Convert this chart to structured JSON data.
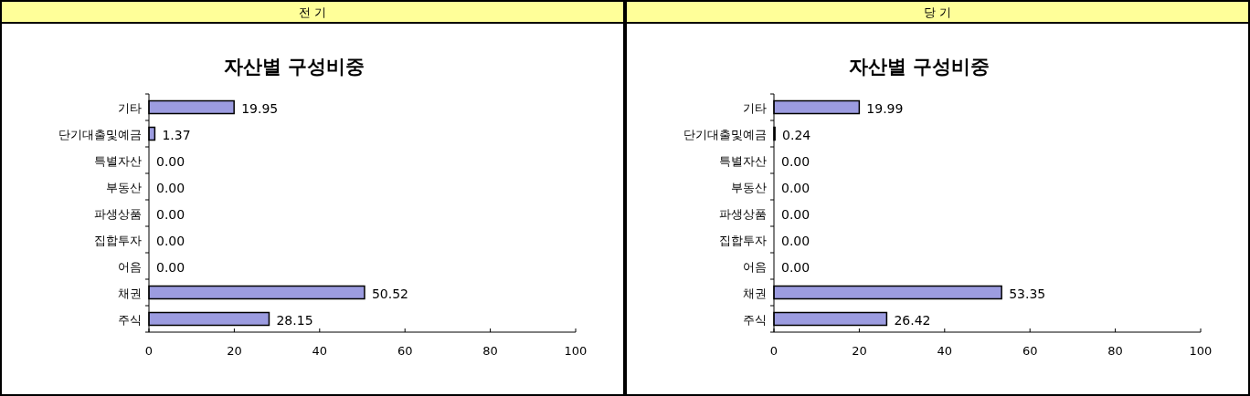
{
  "chart_data": [
    {
      "type": "bar",
      "orientation": "horizontal",
      "title": "전 기",
      "subtitle": "자산별 구성비중",
      "categories": [
        "기타",
        "단기대출및예금",
        "특별자산",
        "부동산",
        "파생상품",
        "집합투자",
        "어음",
        "채권",
        "주식"
      ],
      "values": [
        19.95,
        1.37,
        0,
        0,
        0,
        0,
        0,
        50.52,
        28.15
      ],
      "value_labels": [
        "19.95",
        "1.37",
        "0.00",
        "0.00",
        "0.00",
        "0.00",
        "0.00",
        "50.52",
        "28.15"
      ],
      "color": "#9c9ce0",
      "xlim": [
        0,
        100
      ],
      "xticks": [
        0,
        20,
        40,
        60,
        80,
        100
      ],
      "grid": false
    },
    {
      "type": "bar",
      "orientation": "horizontal",
      "title": "당 기",
      "subtitle": "자산별 구성비중",
      "categories": [
        "기타",
        "단기대출및예금",
        "특별자산",
        "부동산",
        "파생상품",
        "집합투자",
        "어음",
        "채권",
        "주식"
      ],
      "values": [
        19.99,
        0.24,
        0,
        0,
        0,
        0,
        0,
        53.35,
        26.42
      ],
      "value_labels": [
        "19.99",
        "0.24",
        "0.00",
        "0.00",
        "0.00",
        "0.00",
        "0.00",
        "53.35",
        "26.42"
      ],
      "color": "#9c9ce0",
      "xlim": [
        0,
        100
      ],
      "xticks": [
        0,
        20,
        40,
        60,
        80,
        100
      ],
      "grid": false
    }
  ]
}
